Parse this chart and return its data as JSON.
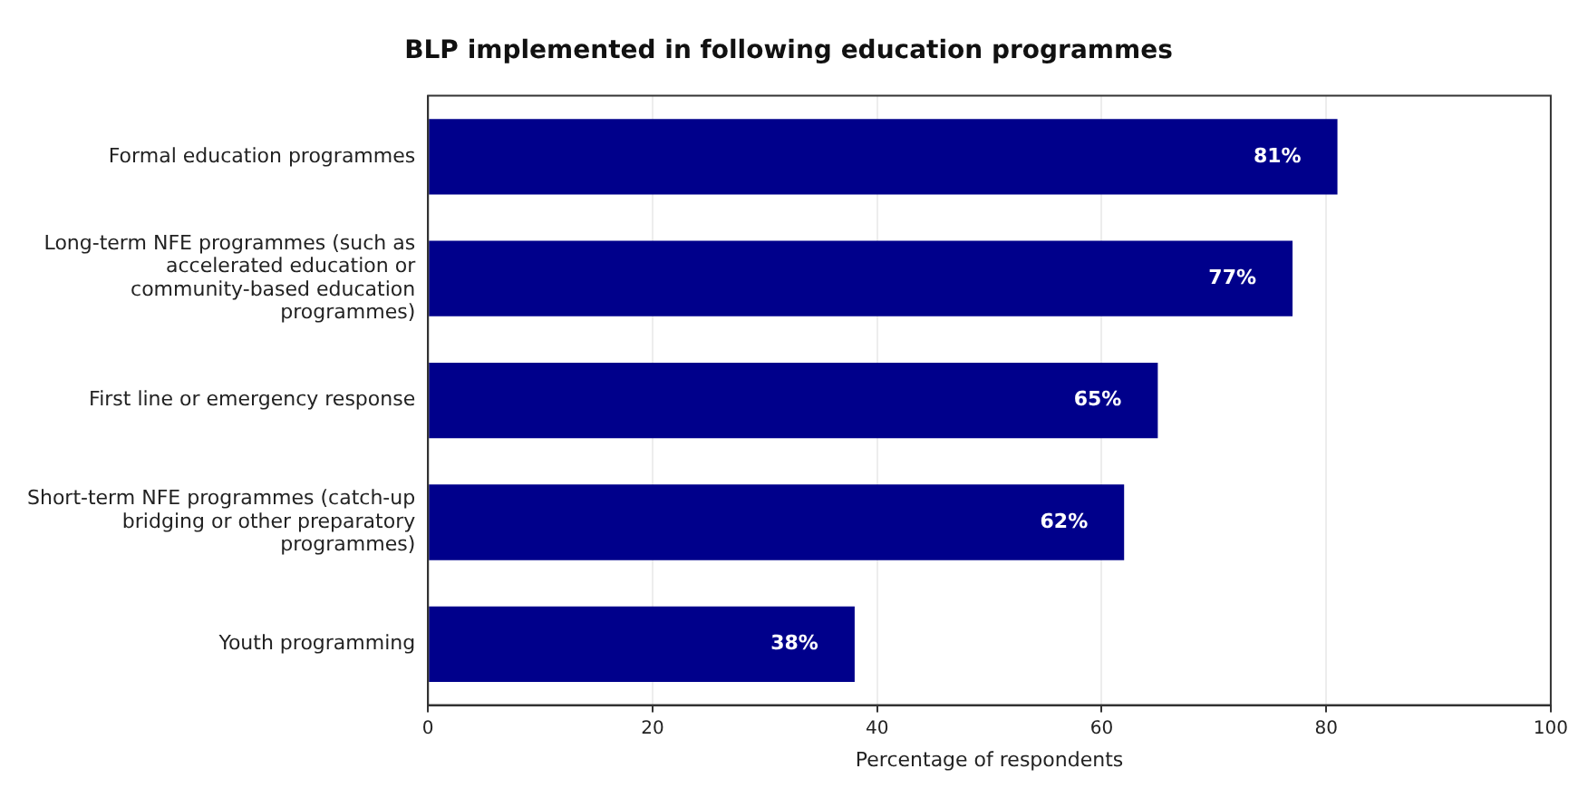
{
  "chart_data": {
    "type": "bar",
    "orientation": "horizontal",
    "title": "BLP implemented in following education programmes",
    "xlabel": "Percentage of respondents",
    "categories": [
      "Formal education programmes",
      "Long-term NFE programmes (such as accelerated education or community-based education programmes)",
      "First line or emergency response",
      "Short-term NFE programmes (catch-up bridging or other preparatory programmes)",
      "Youth programming"
    ],
    "values": [
      81,
      77,
      65,
      62,
      38
    ],
    "value_labels": [
      "81%",
      "77%",
      "65%",
      "62%",
      "38%"
    ],
    "color": "#00008b",
    "xlim": [
      0,
      100
    ],
    "xticks": [
      0,
      20,
      40,
      60,
      80,
      100
    ],
    "grid": "x",
    "legend": false
  }
}
